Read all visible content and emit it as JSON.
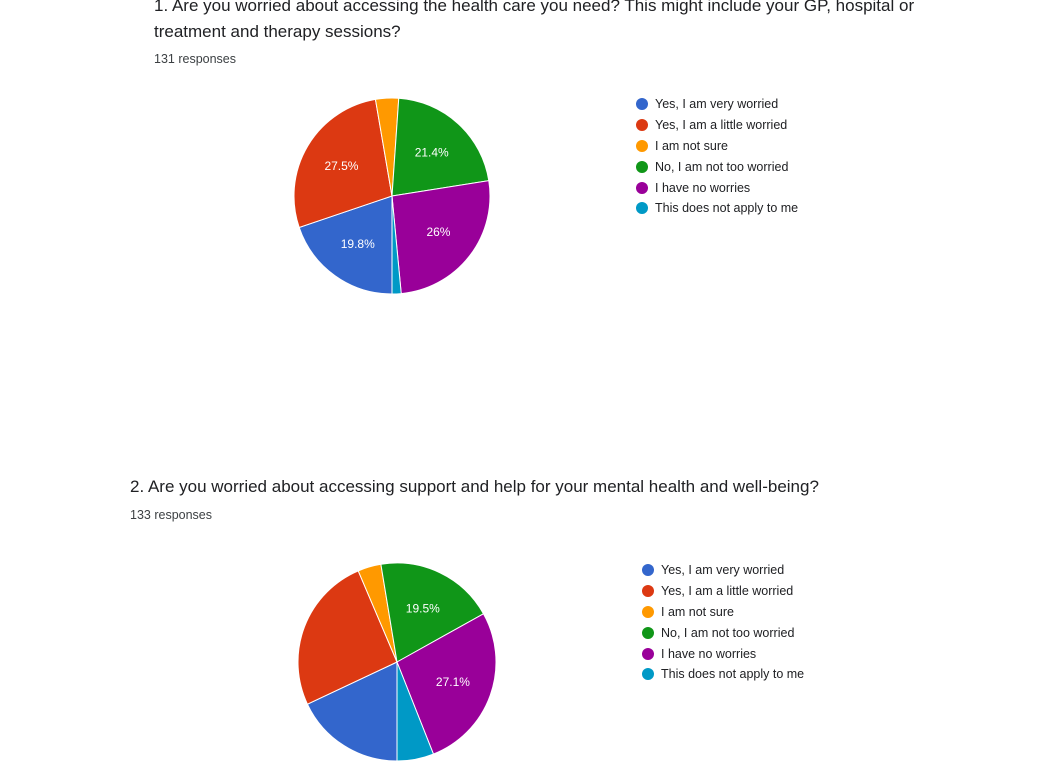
{
  "colors": {
    "blue": "#3366cc",
    "red": "#dc3912",
    "orange": "#ff9900",
    "green": "#109618",
    "purple": "#990099",
    "teal": "#0099c6"
  },
  "chart_data": [
    {
      "type": "pie",
      "title": "1. Are you worried about accessing the health care you need? This might include your GP, hospital or treatment and therapy sessions?",
      "responses": "131 responses",
      "categories": [
        "Yes, I am very worried",
        "Yes, I am a little worried",
        "I am not sure",
        "No, I am not too worried",
        "I have no worries",
        "This does not apply to me"
      ],
      "values": [
        19.8,
        27.5,
        3.8,
        21.4,
        26.0,
        1.5
      ],
      "labels": [
        "19.8%",
        "27.5%",
        "",
        "21.4%",
        "26%",
        ""
      ],
      "legend_position": "right"
    },
    {
      "type": "pie",
      "title": "2. Are you worried about accessing support and help for your mental health and well-being?",
      "responses": "133 responses",
      "categories": [
        "Yes, I am very worried",
        "Yes, I am a little worried",
        "I am not sure",
        "No, I am not too worried",
        "I have no worries",
        "This does not apply to me"
      ],
      "values": [
        18.0,
        25.6,
        3.8,
        19.5,
        27.1,
        6.0
      ],
      "labels": [
        "",
        "",
        "",
        "19.5%",
        "27.1%",
        ""
      ],
      "legend_position": "right"
    }
  ]
}
